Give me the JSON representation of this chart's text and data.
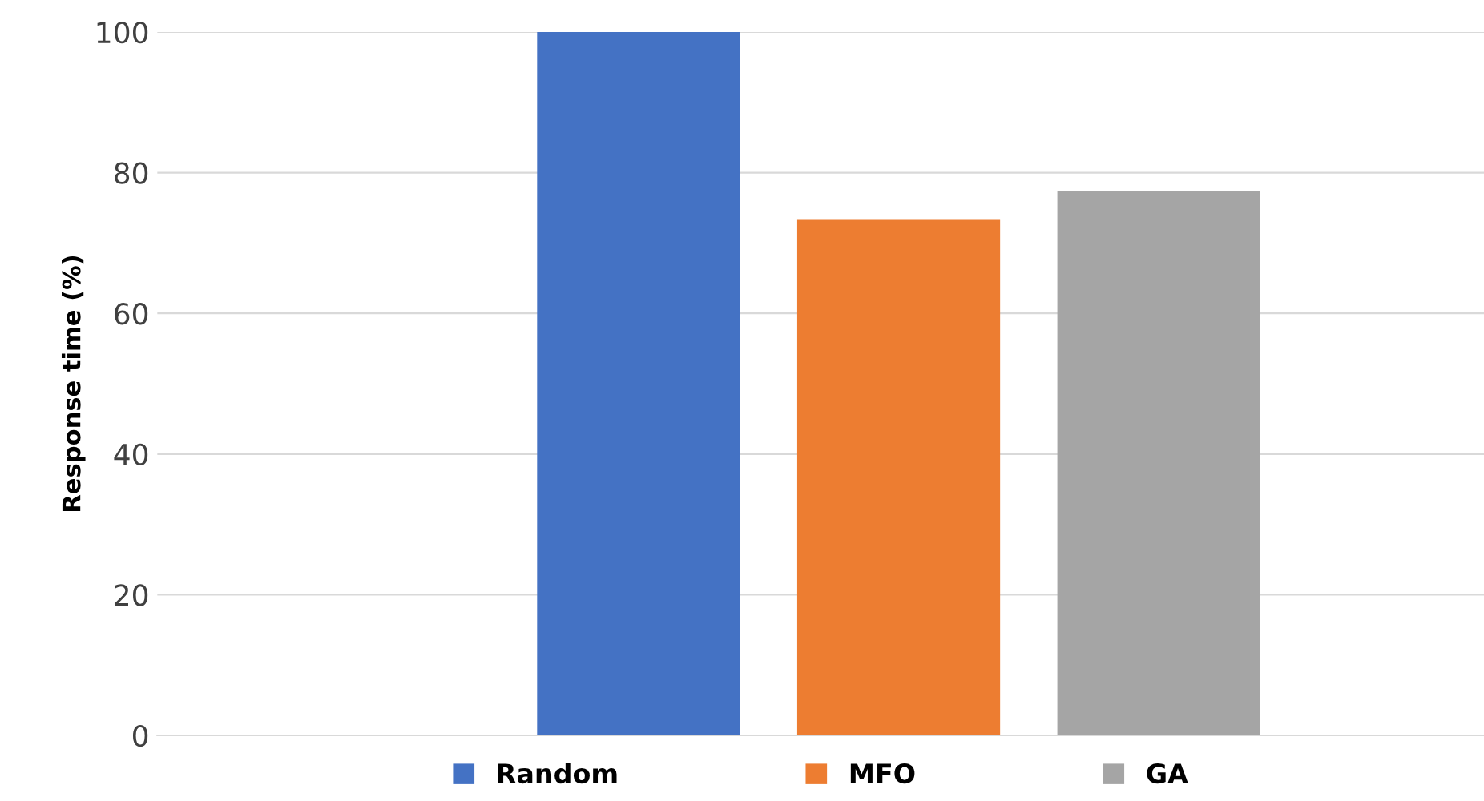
{
  "chart_data": {
    "type": "bar",
    "ylabel": "Response time (%)",
    "categories": [
      null
    ],
    "series": [
      {
        "name": "Random",
        "color": "#4472c4",
        "values": [
          100
        ]
      },
      {
        "name": "MFO",
        "color": "#ed7d31",
        "values": [
          73.3
        ]
      },
      {
        "name": "GA",
        "color": "#a5a5a5",
        "values": [
          77.4
        ]
      }
    ],
    "ylim": [
      0,
      100
    ],
    "yticks": [
      0,
      20,
      40,
      60,
      80,
      100
    ],
    "grid": "y",
    "legend": "bottom"
  }
}
